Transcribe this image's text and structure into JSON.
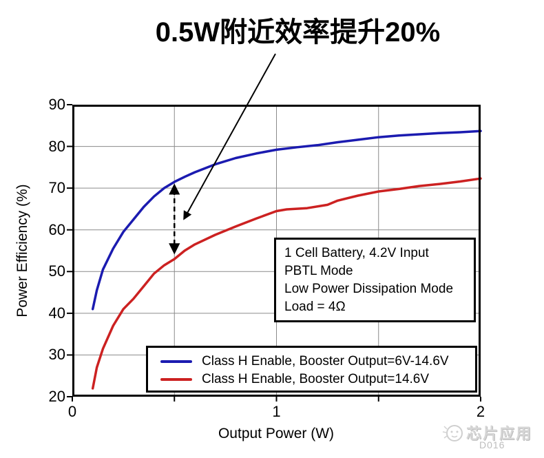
{
  "chart_data": {
    "type": "line",
    "title": "0.5W附近效率提升20%",
    "xlabel": "Output Power (W)",
    "ylabel": "Power Efficiency (%)",
    "xlim": [
      0,
      2
    ],
    "ylim": [
      20,
      90
    ],
    "x_ticks": [
      0,
      1,
      2
    ],
    "x_gridlines": [
      0.5,
      1,
      1.5
    ],
    "y_ticks": [
      20,
      30,
      40,
      50,
      60,
      70,
      80,
      90
    ],
    "grid": true,
    "legend_position": "lower right",
    "axis_color": "#000000",
    "grid_color": "#8a8a8a",
    "series": [
      {
        "name": "Class H Enable, Booster Output=6V-14.6V",
        "color": "#1b1bb0",
        "points": [
          [
            0.1,
            41
          ],
          [
            0.12,
            45.5
          ],
          [
            0.15,
            50.5
          ],
          [
            0.2,
            55.5
          ],
          [
            0.25,
            59.5
          ],
          [
            0.3,
            62.5
          ],
          [
            0.35,
            65.5
          ],
          [
            0.4,
            68
          ],
          [
            0.45,
            70
          ],
          [
            0.5,
            71.5
          ],
          [
            0.55,
            72.7
          ],
          [
            0.6,
            73.8
          ],
          [
            0.7,
            75.7
          ],
          [
            0.8,
            77.2
          ],
          [
            0.9,
            78.3
          ],
          [
            1.0,
            79.2
          ],
          [
            1.1,
            79.8
          ],
          [
            1.2,
            80.3
          ],
          [
            1.3,
            81
          ],
          [
            1.4,
            81.6
          ],
          [
            1.5,
            82.2
          ],
          [
            1.6,
            82.6
          ],
          [
            1.7,
            82.9
          ],
          [
            1.8,
            83.2
          ],
          [
            1.9,
            83.4
          ],
          [
            2.0,
            83.7
          ]
        ]
      },
      {
        "name": "Class H Enable, Booster Output=14.6V",
        "color": "#cc2121",
        "points": [
          [
            0.1,
            22
          ],
          [
            0.12,
            27
          ],
          [
            0.15,
            31.5
          ],
          [
            0.2,
            37
          ],
          [
            0.25,
            41
          ],
          [
            0.3,
            43.5
          ],
          [
            0.35,
            46.5
          ],
          [
            0.4,
            49.5
          ],
          [
            0.45,
            51.5
          ],
          [
            0.5,
            53
          ],
          [
            0.55,
            55
          ],
          [
            0.6,
            56.5
          ],
          [
            0.7,
            58.8
          ],
          [
            0.8,
            60.8
          ],
          [
            0.9,
            62.7
          ],
          [
            1.0,
            64.5
          ],
          [
            1.05,
            64.9
          ],
          [
            1.15,
            65.2
          ],
          [
            1.25,
            66
          ],
          [
            1.3,
            67
          ],
          [
            1.4,
            68.2
          ],
          [
            1.5,
            69.2
          ],
          [
            1.6,
            69.8
          ],
          [
            1.7,
            70.5
          ],
          [
            1.8,
            71
          ],
          [
            1.9,
            71.6
          ],
          [
            2.0,
            72.3
          ]
        ]
      }
    ],
    "conditions": [
      "1 Cell Battery, 4.2V Input",
      "PBTL Mode",
      "Low Power Dissipation Mode",
      "Load = 4Ω"
    ],
    "annotations": {
      "callout_text": "0.5W附近效率提升20%",
      "callout_arrow": {
        "from": [
          0.995,
          102.2
        ],
        "to": [
          0.547,
          62.6
        ]
      },
      "gap_arrow": {
        "x": 0.5,
        "y_from": 54.5,
        "y_to": 70.7
      }
    }
  },
  "watermark": {
    "brand": "芯片应用",
    "figure_id": "D016",
    "logo": "chick-face-logo-icon"
  }
}
